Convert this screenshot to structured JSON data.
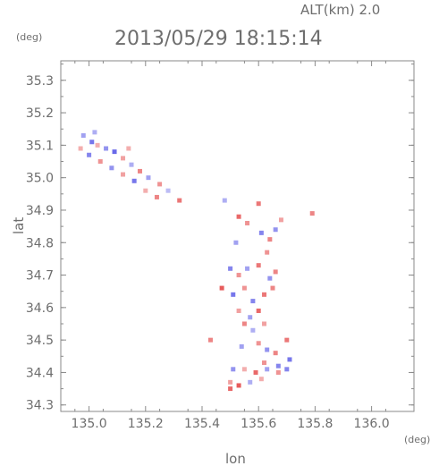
{
  "header": {
    "alt_label": "ALT(km)  2.0",
    "datetime": "2013/05/29 18:15:14",
    "y_unit": "(deg)",
    "x_unit": "(deg)"
  },
  "chart_data": {
    "type": "scatter",
    "title": "2013/05/29 18:15:14",
    "xlabel": "lon",
    "ylabel": "lat",
    "xlim": [
      134.9,
      136.15
    ],
    "ylim": [
      34.28,
      35.36
    ],
    "x_ticks": [
      135.0,
      135.2,
      135.4,
      135.6,
      135.8,
      136.0
    ],
    "y_ticks": [
      34.3,
      34.4,
      34.5,
      34.6,
      34.7,
      34.8,
      34.9,
      35.0,
      35.1,
      35.2,
      35.3
    ],
    "x_tick_labels": [
      "135.0",
      "135.2",
      "135.4",
      "135.6",
      "135.8",
      "136.0"
    ],
    "y_tick_labels": [
      "34.3",
      "34.4",
      "34.5",
      "34.6",
      "34.7",
      "34.8",
      "34.9",
      "35.0",
      "35.1",
      "35.2",
      "35.3"
    ],
    "grid": false,
    "colors": {
      "positive": "#e23a3a",
      "negative": "#3a3ae2",
      "axis": "#8a8a8a"
    },
    "points": [
      {
        "x": 134.98,
        "y": 35.13,
        "v": -0.4
      },
      {
        "x": 135.01,
        "y": 35.11,
        "v": -0.7
      },
      {
        "x": 135.03,
        "y": 35.1,
        "v": 0.3
      },
      {
        "x": 135.06,
        "y": 35.09,
        "v": -0.5
      },
      {
        "x": 135.09,
        "y": 35.08,
        "v": -0.8
      },
      {
        "x": 135.12,
        "y": 35.06,
        "v": 0.4
      },
      {
        "x": 135.15,
        "y": 35.04,
        "v": -0.3
      },
      {
        "x": 135.18,
        "y": 35.02,
        "v": 0.6
      },
      {
        "x": 135.21,
        "y": 35.0,
        "v": -0.4
      },
      {
        "x": 135.25,
        "y": 34.98,
        "v": 0.5
      },
      {
        "x": 135.28,
        "y": 34.96,
        "v": -0.2
      },
      {
        "x": 135.32,
        "y": 34.93,
        "v": 0.7
      },
      {
        "x": 134.97,
        "y": 35.09,
        "v": 0.3
      },
      {
        "x": 135.0,
        "y": 35.07,
        "v": -0.6
      },
      {
        "x": 135.04,
        "y": 35.05,
        "v": 0.5
      },
      {
        "x": 135.08,
        "y": 35.03,
        "v": -0.5
      },
      {
        "x": 135.12,
        "y": 35.01,
        "v": 0.4
      },
      {
        "x": 135.16,
        "y": 34.99,
        "v": -0.7
      },
      {
        "x": 135.2,
        "y": 34.96,
        "v": 0.3
      },
      {
        "x": 135.24,
        "y": 34.94,
        "v": 0.6
      },
      {
        "x": 135.02,
        "y": 35.14,
        "v": -0.3
      },
      {
        "x": 135.14,
        "y": 35.09,
        "v": 0.3
      },
      {
        "x": 135.53,
        "y": 34.88,
        "v": 0.8
      },
      {
        "x": 135.56,
        "y": 34.86,
        "v": 0.5
      },
      {
        "x": 135.6,
        "y": 34.92,
        "v": 0.7
      },
      {
        "x": 135.61,
        "y": 34.83,
        "v": -0.6
      },
      {
        "x": 135.64,
        "y": 34.81,
        "v": 0.6
      },
      {
        "x": 135.66,
        "y": 34.84,
        "v": -0.5
      },
      {
        "x": 135.68,
        "y": 34.87,
        "v": 0.4
      },
      {
        "x": 135.63,
        "y": 34.77,
        "v": 0.5
      },
      {
        "x": 135.79,
        "y": 34.89,
        "v": 0.6
      },
      {
        "x": 135.48,
        "y": 34.93,
        "v": -0.3
      },
      {
        "x": 135.52,
        "y": 34.8,
        "v": -0.4
      },
      {
        "x": 135.5,
        "y": 34.72,
        "v": -0.6
      },
      {
        "x": 135.53,
        "y": 34.7,
        "v": 0.5
      },
      {
        "x": 135.56,
        "y": 34.72,
        "v": -0.4
      },
      {
        "x": 135.6,
        "y": 34.73,
        "v": 0.7
      },
      {
        "x": 135.64,
        "y": 34.69,
        "v": -0.5
      },
      {
        "x": 135.66,
        "y": 34.71,
        "v": 0.6
      },
      {
        "x": 135.47,
        "y": 34.66,
        "v": 0.9
      },
      {
        "x": 135.51,
        "y": 34.64,
        "v": -0.7
      },
      {
        "x": 135.55,
        "y": 34.66,
        "v": 0.5
      },
      {
        "x": 135.58,
        "y": 34.62,
        "v": -0.6
      },
      {
        "x": 135.62,
        "y": 34.64,
        "v": 0.7
      },
      {
        "x": 135.65,
        "y": 34.66,
        "v": 0.6
      },
      {
        "x": 135.53,
        "y": 34.59,
        "v": 0.4
      },
      {
        "x": 135.57,
        "y": 34.57,
        "v": -0.4
      },
      {
        "x": 135.6,
        "y": 34.59,
        "v": 0.8
      },
      {
        "x": 135.55,
        "y": 34.55,
        "v": 0.6
      },
      {
        "x": 135.58,
        "y": 34.53,
        "v": -0.3
      },
      {
        "x": 135.62,
        "y": 34.55,
        "v": 0.4
      },
      {
        "x": 135.43,
        "y": 34.5,
        "v": 0.6
      },
      {
        "x": 135.54,
        "y": 34.48,
        "v": -0.4
      },
      {
        "x": 135.6,
        "y": 34.49,
        "v": 0.5
      },
      {
        "x": 135.63,
        "y": 34.47,
        "v": -0.5
      },
      {
        "x": 135.66,
        "y": 34.46,
        "v": 0.6
      },
      {
        "x": 135.7,
        "y": 34.5,
        "v": 0.7
      },
      {
        "x": 135.62,
        "y": 34.43,
        "v": 0.5
      },
      {
        "x": 135.67,
        "y": 34.42,
        "v": -0.6
      },
      {
        "x": 135.71,
        "y": 34.44,
        "v": -0.7
      },
      {
        "x": 135.51,
        "y": 34.41,
        "v": -0.5
      },
      {
        "x": 135.55,
        "y": 34.41,
        "v": 0.3
      },
      {
        "x": 135.59,
        "y": 34.4,
        "v": 0.8
      },
      {
        "x": 135.63,
        "y": 34.41,
        "v": -0.4
      },
      {
        "x": 135.67,
        "y": 34.4,
        "v": 0.5
      },
      {
        "x": 135.7,
        "y": 34.41,
        "v": -0.6
      },
      {
        "x": 135.5,
        "y": 34.37,
        "v": 0.4
      },
      {
        "x": 135.53,
        "y": 34.36,
        "v": 0.9
      },
      {
        "x": 135.57,
        "y": 34.37,
        "v": -0.3
      },
      {
        "x": 135.61,
        "y": 34.38,
        "v": 0.3
      },
      {
        "x": 135.5,
        "y": 34.35,
        "v": 0.8
      }
    ]
  }
}
